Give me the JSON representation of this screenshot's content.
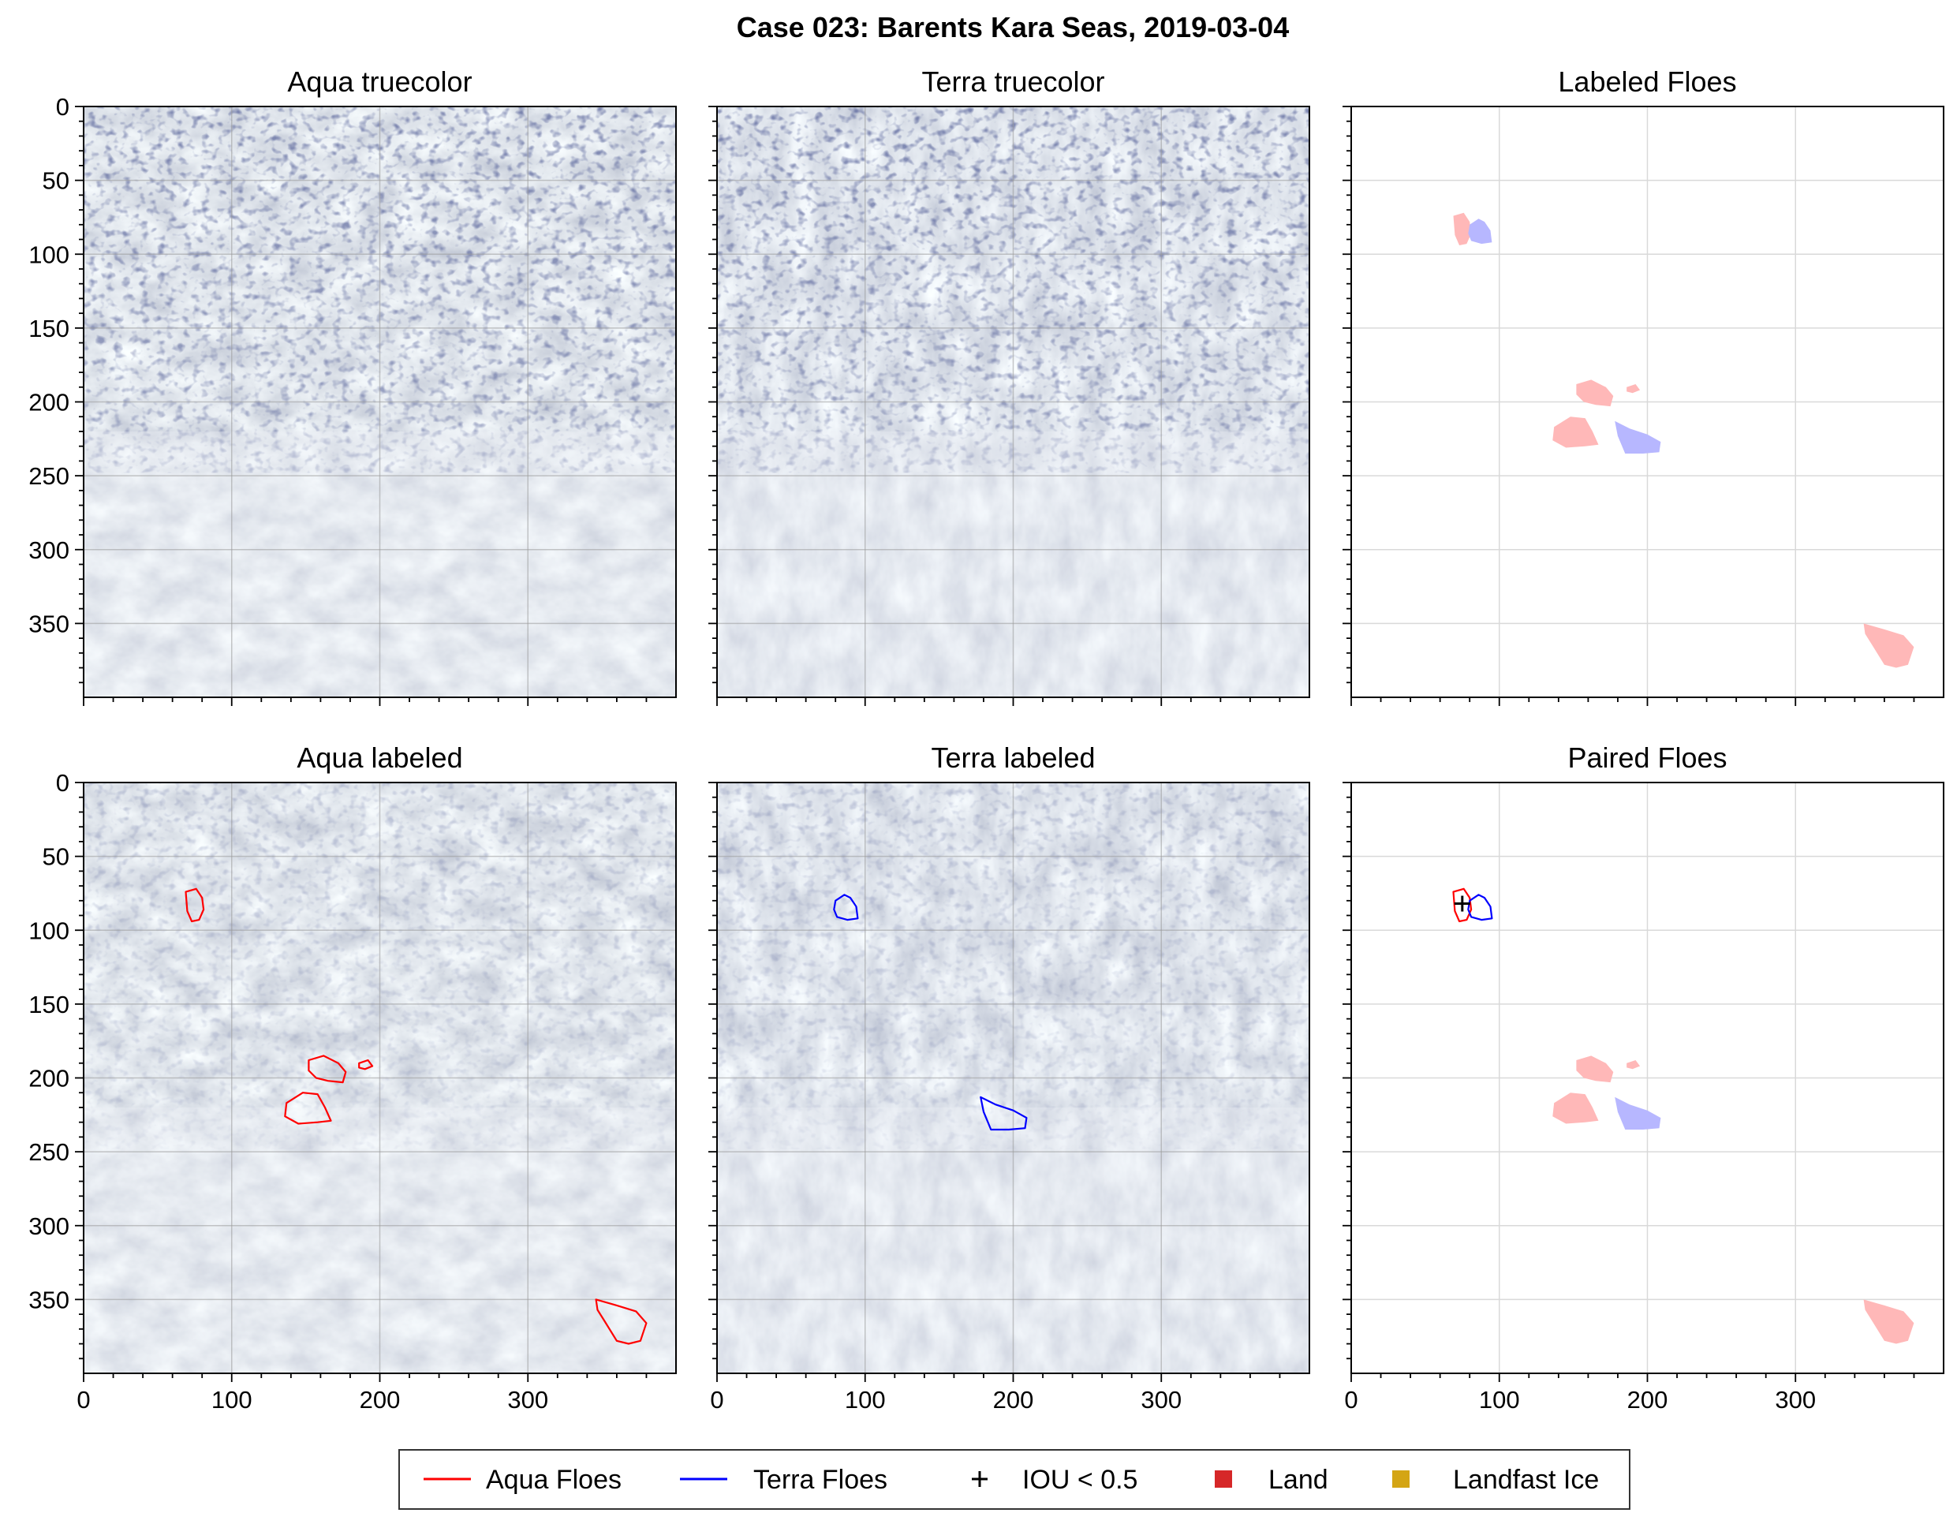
{
  "suptitle": "Case 023: Barents Kara Seas, 2019-03-04",
  "legend": [
    {
      "label": "Aqua Floes",
      "marker": "line",
      "color": "#ff0000"
    },
    {
      "label": "Terra Floes",
      "marker": "line",
      "color": "#0000ff"
    },
    {
      "label": "IOU < 0.5",
      "marker": "plus",
      "color": "#000000"
    },
    {
      "label": "Land",
      "marker": "square",
      "color": "#d62728"
    },
    {
      "label": "Landfast Ice",
      "marker": "square",
      "color": "#d4a514"
    }
  ],
  "colors": {
    "aqua": "#ff0000",
    "terra": "#0000ff",
    "aqua_fill": "#ffb8b8",
    "terra_fill": "#b7b7ff",
    "grid": "#d9d9d9"
  },
  "chart_data": [
    {
      "type": "image",
      "title": "Aqua truecolor",
      "background": "satellite-imagery",
      "xlim": [
        0,
        400
      ],
      "ylim": [
        400,
        0
      ],
      "xticks": [
        0,
        100,
        200,
        300
      ],
      "yticks": [
        0,
        50,
        100,
        150,
        200,
        250,
        300,
        350
      ],
      "show_xticklabels": false,
      "show_yticklabels": true,
      "grid": true
    },
    {
      "type": "image",
      "title": "Terra truecolor",
      "background": "satellite-imagery",
      "xlim": [
        0,
        400
      ],
      "ylim": [
        400,
        0
      ],
      "xticks": [
        0,
        100,
        200,
        300
      ],
      "yticks": [
        0,
        50,
        100,
        150,
        200,
        250,
        300,
        350
      ],
      "show_xticklabels": false,
      "show_yticklabels": false,
      "grid": true
    },
    {
      "type": "image",
      "title": "Labeled Floes",
      "background": "white",
      "xlim": [
        0,
        400
      ],
      "ylim": [
        400,
        0
      ],
      "xticks": [
        0,
        100,
        200,
        300
      ],
      "yticks": [
        0,
        50,
        100,
        150,
        200,
        250,
        300,
        350
      ],
      "show_xticklabels": false,
      "show_yticklabels": false,
      "grid": true,
      "floes": [
        {
          "satellite": "aqua",
          "style": "fill",
          "outline": [
            [
              69,
              74
            ],
            [
              76,
              72
            ],
            [
              80,
              78
            ],
            [
              81,
              86
            ],
            [
              78,
              93
            ],
            [
              73,
              94
            ],
            [
              70,
              87
            ]
          ]
        },
        {
          "satellite": "terra",
          "style": "fill",
          "outline": [
            [
              80,
              80
            ],
            [
              86,
              76
            ],
            [
              90,
              78
            ],
            [
              94,
              84
            ],
            [
              95,
              92
            ],
            [
              88,
              93
            ],
            [
              81,
              91
            ],
            [
              79,
              86
            ]
          ]
        },
        {
          "satellite": "aqua",
          "style": "fill",
          "outline": [
            [
              152,
              188
            ],
            [
              162,
              185
            ],
            [
              172,
              190
            ],
            [
              177,
              196
            ],
            [
              175,
              203
            ],
            [
              165,
              202
            ],
            [
              157,
              200
            ],
            [
              152,
              195
            ]
          ]
        },
        {
          "satellite": "aqua",
          "style": "fill",
          "outline": [
            [
              186,
              190
            ],
            [
              192,
              188
            ],
            [
              195,
              192
            ],
            [
              190,
              194
            ],
            [
              186,
              193
            ]
          ]
        },
        {
          "satellite": "aqua",
          "style": "fill",
          "outline": [
            [
              137,
              217
            ],
            [
              148,
              210
            ],
            [
              158,
              211
            ],
            [
              163,
              220
            ],
            [
              167,
              229
            ],
            [
              158,
              230
            ],
            [
              145,
              231
            ],
            [
              136,
              226
            ]
          ]
        },
        {
          "satellite": "terra",
          "style": "fill",
          "outline": [
            [
              178,
              213
            ],
            [
              188,
              218
            ],
            [
              200,
              222
            ],
            [
              209,
              227
            ],
            [
              208,
              234
            ],
            [
              197,
              235
            ],
            [
              185,
              235
            ],
            [
              180,
              223
            ]
          ]
        },
        {
          "satellite": "aqua",
          "style": "fill",
          "outline": [
            [
              346,
              350
            ],
            [
              360,
              354
            ],
            [
              373,
              358
            ],
            [
              380,
              366
            ],
            [
              376,
              378
            ],
            [
              368,
              380
            ],
            [
              360,
              378
            ],
            [
              352,
              365
            ],
            [
              347,
              357
            ]
          ]
        }
      ]
    },
    {
      "type": "image",
      "title": "Aqua labeled",
      "background": "satellite-imagery",
      "xlim": [
        0,
        400
      ],
      "ylim": [
        400,
        0
      ],
      "xticks": [
        0,
        100,
        200,
        300
      ],
      "yticks": [
        0,
        50,
        100,
        150,
        200,
        250,
        300,
        350
      ],
      "show_xticklabels": true,
      "show_yticklabels": true,
      "grid": true,
      "floes": [
        {
          "satellite": "aqua",
          "style": "outline",
          "outline": [
            [
              69,
              74
            ],
            [
              76,
              72
            ],
            [
              80,
              78
            ],
            [
              81,
              86
            ],
            [
              78,
              93
            ],
            [
              73,
              94
            ],
            [
              70,
              87
            ]
          ]
        },
        {
          "satellite": "aqua",
          "style": "outline",
          "outline": [
            [
              152,
              188
            ],
            [
              162,
              185
            ],
            [
              172,
              190
            ],
            [
              177,
              196
            ],
            [
              175,
              203
            ],
            [
              165,
              202
            ],
            [
              157,
              200
            ],
            [
              152,
              195
            ]
          ]
        },
        {
          "satellite": "aqua",
          "style": "outline",
          "outline": [
            [
              186,
              190
            ],
            [
              192,
              188
            ],
            [
              195,
              192
            ],
            [
              190,
              194
            ],
            [
              186,
              193
            ]
          ]
        },
        {
          "satellite": "aqua",
          "style": "outline",
          "outline": [
            [
              137,
              217
            ],
            [
              148,
              210
            ],
            [
              158,
              211
            ],
            [
              163,
              220
            ],
            [
              167,
              229
            ],
            [
              158,
              230
            ],
            [
              145,
              231
            ],
            [
              136,
              226
            ]
          ]
        },
        {
          "satellite": "aqua",
          "style": "outline",
          "outline": [
            [
              346,
              350
            ],
            [
              360,
              354
            ],
            [
              373,
              358
            ],
            [
              380,
              366
            ],
            [
              376,
              378
            ],
            [
              368,
              380
            ],
            [
              360,
              378
            ],
            [
              352,
              365
            ],
            [
              347,
              357
            ]
          ]
        }
      ]
    },
    {
      "type": "image",
      "title": "Terra labeled",
      "background": "satellite-imagery",
      "xlim": [
        0,
        400
      ],
      "ylim": [
        400,
        0
      ],
      "xticks": [
        0,
        100,
        200,
        300
      ],
      "yticks": [
        0,
        50,
        100,
        150,
        200,
        250,
        300,
        350
      ],
      "show_xticklabels": true,
      "show_yticklabels": false,
      "grid": true,
      "floes": [
        {
          "satellite": "terra",
          "style": "outline",
          "outline": [
            [
              80,
              80
            ],
            [
              86,
              76
            ],
            [
              90,
              78
            ],
            [
              94,
              84
            ],
            [
              95,
              92
            ],
            [
              88,
              93
            ],
            [
              81,
              91
            ],
            [
              79,
              86
            ]
          ]
        },
        {
          "satellite": "terra",
          "style": "outline",
          "outline": [
            [
              178,
              213
            ],
            [
              188,
              218
            ],
            [
              200,
              222
            ],
            [
              209,
              227
            ],
            [
              208,
              234
            ],
            [
              197,
              235
            ],
            [
              185,
              235
            ],
            [
              180,
              223
            ]
          ]
        }
      ]
    },
    {
      "type": "image",
      "title": "Paired Floes",
      "background": "white",
      "xlim": [
        0,
        400
      ],
      "ylim": [
        400,
        0
      ],
      "xticks": [
        0,
        100,
        200,
        300
      ],
      "yticks": [
        0,
        50,
        100,
        150,
        200,
        250,
        300,
        350
      ],
      "show_xticklabels": true,
      "show_yticklabels": false,
      "grid": true,
      "floes": [
        {
          "satellite": "aqua",
          "style": "outline",
          "outline": [
            [
              69,
              74
            ],
            [
              76,
              72
            ],
            [
              80,
              78
            ],
            [
              81,
              86
            ],
            [
              78,
              93
            ],
            [
              73,
              94
            ],
            [
              70,
              87
            ]
          ]
        },
        {
          "satellite": "terra",
          "style": "outline",
          "outline": [
            [
              80,
              80
            ],
            [
              86,
              76
            ],
            [
              90,
              78
            ],
            [
              94,
              84
            ],
            [
              95,
              92
            ],
            [
              88,
              93
            ],
            [
              81,
              91
            ],
            [
              79,
              86
            ]
          ]
        },
        {
          "satellite": "aqua",
          "style": "fill",
          "outline": [
            [
              152,
              188
            ],
            [
              162,
              185
            ],
            [
              172,
              190
            ],
            [
              177,
              196
            ],
            [
              175,
              203
            ],
            [
              165,
              202
            ],
            [
              157,
              200
            ],
            [
              152,
              195
            ]
          ]
        },
        {
          "satellite": "aqua",
          "style": "fill",
          "outline": [
            [
              186,
              190
            ],
            [
              192,
              188
            ],
            [
              195,
              192
            ],
            [
              190,
              194
            ],
            [
              186,
              193
            ]
          ]
        },
        {
          "satellite": "aqua",
          "style": "fill",
          "outline": [
            [
              137,
              217
            ],
            [
              148,
              210
            ],
            [
              158,
              211
            ],
            [
              163,
              220
            ],
            [
              167,
              229
            ],
            [
              158,
              230
            ],
            [
              145,
              231
            ],
            [
              136,
              226
            ]
          ]
        },
        {
          "satellite": "terra",
          "style": "fill",
          "outline": [
            [
              178,
              213
            ],
            [
              188,
              218
            ],
            [
              200,
              222
            ],
            [
              209,
              227
            ],
            [
              208,
              234
            ],
            [
              197,
              235
            ],
            [
              185,
              235
            ],
            [
              180,
              223
            ]
          ]
        },
        {
          "satellite": "aqua",
          "style": "fill",
          "outline": [
            [
              346,
              350
            ],
            [
              360,
              354
            ],
            [
              373,
              358
            ],
            [
              380,
              366
            ],
            [
              376,
              378
            ],
            [
              368,
              380
            ],
            [
              360,
              378
            ],
            [
              352,
              365
            ],
            [
              347,
              357
            ]
          ]
        }
      ],
      "markers": [
        {
          "type": "plus",
          "x": 75,
          "y": 82,
          "label": "IOU < 0.5"
        }
      ]
    }
  ]
}
